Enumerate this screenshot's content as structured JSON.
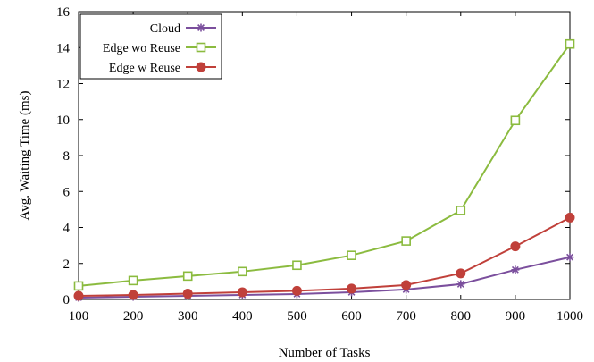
{
  "chart_data": {
    "type": "line",
    "title": "",
    "xlabel": "Number of Tasks",
    "ylabel": "Avg. Waiting Time (ms)",
    "x": [
      100,
      200,
      300,
      400,
      500,
      600,
      700,
      800,
      900,
      1000
    ],
    "xticks": [
      "100",
      "200",
      "300",
      "400",
      "500",
      "600",
      "700",
      "800",
      "900",
      "1000"
    ],
    "yticks": [
      "0",
      "2",
      "4",
      "6",
      "8",
      "10",
      "12",
      "14",
      "16"
    ],
    "xlim": [
      100,
      1000
    ],
    "ylim": [
      0,
      16
    ],
    "grid": false,
    "legend_position": "top-left",
    "series": [
      {
        "name": "Cloud",
        "color": "#7b4f9d",
        "marker": "asterisk",
        "values": [
          0.1,
          0.15,
          0.2,
          0.25,
          0.3,
          0.4,
          0.55,
          0.85,
          1.65,
          2.35
        ]
      },
      {
        "name": "Edge wo Reuse",
        "color": "#8bbb3f",
        "marker": "square-open",
        "values": [
          0.75,
          1.05,
          1.3,
          1.55,
          1.9,
          2.45,
          3.25,
          4.95,
          9.95,
          14.2
        ]
      },
      {
        "name": "Edge w  Reuse",
        "color": "#c0403a",
        "marker": "circle-filled",
        "values": [
          0.2,
          0.25,
          0.32,
          0.4,
          0.48,
          0.6,
          0.8,
          1.45,
          2.95,
          4.55
        ]
      }
    ]
  }
}
